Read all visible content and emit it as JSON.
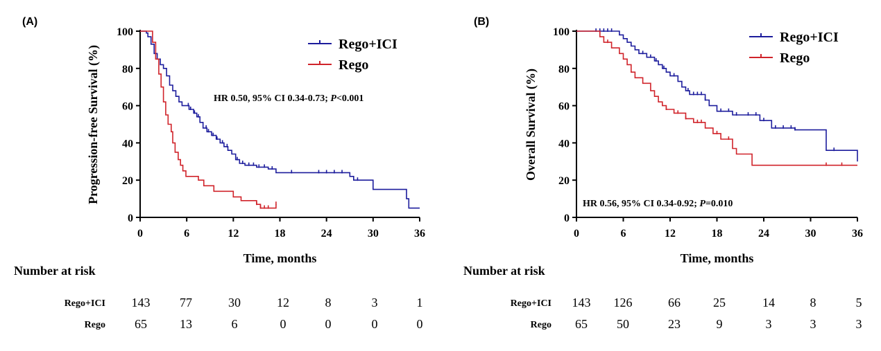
{
  "panels": [
    {
      "label": "(A)",
      "hr_prefix": "HR 0.50, 95%  CI 0.34-0.73; ",
      "hr_p_symbol": "P",
      "hr_p_value": "<0.001",
      "risk": {
        "title": "Number at risk",
        "rows": [
          {
            "name": "Rego+ICI",
            "values": [
              "143",
              "77",
              "30",
              "12",
              "8",
              "3",
              "1"
            ]
          },
          {
            "name": "Rego",
            "values": [
              "65",
              "13",
              "6",
              "0",
              "0",
              "0",
              "0"
            ]
          }
        ]
      }
    },
    {
      "label": "(B)",
      "hr_prefix": "HR 0.56, 95%  CI 0.34-0.92; ",
      "hr_p_symbol": "P",
      "hr_p_value": "=0.010",
      "risk": {
        "title": "Number at risk",
        "rows": [
          {
            "name": "Rego+ICI",
            "values": [
              "143",
              "126",
              "66",
              "25",
              "14",
              "8",
              "5"
            ]
          },
          {
            "name": "Rego",
            "values": [
              "65",
              "50",
              "23",
              "9",
              "3",
              "3",
              "3"
            ]
          }
        ]
      }
    }
  ],
  "chart_data": [
    {
      "type": "line",
      "title": "",
      "xlabel": "Time, months",
      "ylabel": "Progression-free Survival (%)",
      "xlim": [
        0,
        36
      ],
      "ylim": [
        0,
        100
      ],
      "xticks": [
        "0",
        "6",
        "12",
        "18",
        "24",
        "30",
        "36"
      ],
      "yticks": [
        "0",
        "20",
        "40",
        "60",
        "80",
        "100"
      ],
      "legend": "top-right",
      "series": [
        {
          "name": "Rego+ICI",
          "color": "#1c1c9c",
          "step": true,
          "points": [
            [
              0,
              100
            ],
            [
              0.5,
              100
            ],
            [
              0.8,
              99
            ],
            [
              1.0,
              97
            ],
            [
              1.4,
              93
            ],
            [
              1.8,
              88
            ],
            [
              2.2,
              85
            ],
            [
              2.6,
              82
            ],
            [
              3.0,
              80
            ],
            [
              3.4,
              76
            ],
            [
              3.8,
              71
            ],
            [
              4.2,
              68
            ],
            [
              4.6,
              65
            ],
            [
              5.0,
              62
            ],
            [
              5.4,
              60
            ],
            [
              6.3,
              58
            ],
            [
              6.9,
              56
            ],
            [
              7.3,
              54
            ],
            [
              7.7,
              51
            ],
            [
              8.1,
              48
            ],
            [
              8.6,
              46
            ],
            [
              9.2,
              44
            ],
            [
              9.8,
              42
            ],
            [
              10.3,
              40
            ],
            [
              10.8,
              38
            ],
            [
              11.3,
              36
            ],
            [
              11.8,
              34
            ],
            [
              12.3,
              31
            ],
            [
              12.8,
              29
            ],
            [
              13.5,
              28
            ],
            [
              15.0,
              27
            ],
            [
              16.5,
              26
            ],
            [
              17.5,
              24
            ],
            [
              27.0,
              22
            ],
            [
              27.5,
              20
            ],
            [
              30.0,
              15
            ],
            [
              34.3,
              10
            ],
            [
              34.6,
              5
            ],
            [
              36,
              5
            ]
          ],
          "censor_x": [
            6.2,
            6.5,
            7.0,
            7.5,
            8.5,
            8.8,
            9.4,
            9.9,
            10.6,
            11.2,
            12.5,
            13.2,
            14.0,
            14.6,
            15.3,
            16.0,
            17.0,
            19.5,
            23.0,
            24.0,
            25.0,
            26.0,
            28.0
          ]
        },
        {
          "name": "Rego",
          "color": "#d0232a",
          "step": true,
          "points": [
            [
              0,
              100
            ],
            [
              1.3,
              100
            ],
            [
              1.6,
              94
            ],
            [
              2.0,
              85
            ],
            [
              2.4,
              77
            ],
            [
              2.7,
              70
            ],
            [
              3.0,
              62
            ],
            [
              3.3,
              55
            ],
            [
              3.6,
              50
            ],
            [
              4.0,
              46
            ],
            [
              4.2,
              40
            ],
            [
              4.5,
              35
            ],
            [
              4.9,
              31
            ],
            [
              5.2,
              28
            ],
            [
              5.5,
              25
            ],
            [
              5.9,
              22
            ],
            [
              7.5,
              20
            ],
            [
              8.2,
              17
            ],
            [
              9.5,
              14
            ],
            [
              12.0,
              11
            ],
            [
              13.0,
              9
            ],
            [
              14.5,
              9
            ],
            [
              15.0,
              7
            ],
            [
              15.5,
              5
            ],
            [
              17.5,
              5
            ],
            [
              17.5,
              7
            ]
          ],
          "censor_x": [
            15.0,
            15.5,
            16.0,
            16.5,
            17.5
          ]
        }
      ]
    },
    {
      "type": "line",
      "title": "",
      "xlabel": "Time, months",
      "ylabel": "Overall Survival (%)",
      "xlim": [
        0,
        36
      ],
      "ylim": [
        0,
        100
      ],
      "xticks": [
        "0",
        "6",
        "12",
        "18",
        "24",
        "30",
        "36"
      ],
      "yticks": [
        "0",
        "20",
        "40",
        "60",
        "80",
        "100"
      ],
      "legend": "top-right",
      "series": [
        {
          "name": "Rego+ICI",
          "color": "#1c1c9c",
          "step": true,
          "points": [
            [
              0,
              100
            ],
            [
              5.0,
              100
            ],
            [
              5.5,
              98
            ],
            [
              6.0,
              96
            ],
            [
              6.5,
              94
            ],
            [
              7.0,
              92
            ],
            [
              7.5,
              90
            ],
            [
              8.0,
              88
            ],
            [
              9.0,
              86
            ],
            [
              10.0,
              84
            ],
            [
              10.5,
              82
            ],
            [
              11.0,
              80
            ],
            [
              11.5,
              78
            ],
            [
              12.0,
              76
            ],
            [
              13.0,
              73
            ],
            [
              13.5,
              70
            ],
            [
              14.0,
              68
            ],
            [
              14.5,
              66
            ],
            [
              16.5,
              63
            ],
            [
              17.0,
              60
            ],
            [
              18.0,
              57
            ],
            [
              20.0,
              55
            ],
            [
              23.5,
              52
            ],
            [
              25.0,
              48
            ],
            [
              28.0,
              47
            ],
            [
              31.5,
              47
            ],
            [
              32.0,
              36
            ],
            [
              36.0,
              36
            ],
            [
              36.0,
              30
            ]
          ],
          "censor_x": [
            2.5,
            3.0,
            3.5,
            4.0,
            4.5,
            8.5,
            9.5,
            10.2,
            11.2,
            12.5,
            14.3,
            15.0,
            15.5,
            16.0,
            16.5,
            18.5,
            19.5,
            20.5,
            22.0,
            23.0,
            24.0,
            25.5,
            26.5,
            27.5,
            28.0,
            33.0
          ]
        },
        {
          "name": "Rego",
          "color": "#d0232a",
          "step": true,
          "points": [
            [
              0,
              100
            ],
            [
              2.0,
              100
            ],
            [
              3.0,
              97
            ],
            [
              3.5,
              94
            ],
            [
              4.5,
              91
            ],
            [
              5.5,
              88
            ],
            [
              6.0,
              85
            ],
            [
              6.5,
              82
            ],
            [
              7.0,
              78
            ],
            [
              7.5,
              75
            ],
            [
              8.5,
              72
            ],
            [
              9.5,
              68
            ],
            [
              10.0,
              65
            ],
            [
              10.5,
              62
            ],
            [
              11.0,
              60
            ],
            [
              11.5,
              58
            ],
            [
              12.5,
              56
            ],
            [
              14.0,
              53
            ],
            [
              15.0,
              51
            ],
            [
              16.5,
              48
            ],
            [
              17.5,
              45
            ],
            [
              18.5,
              42
            ],
            [
              20.0,
              37
            ],
            [
              20.5,
              34
            ],
            [
              22.0,
              34
            ],
            [
              22.5,
              28
            ],
            [
              36.0,
              28
            ]
          ],
          "censor_x": [
            4.0,
            11.5,
            13.0,
            14.0,
            15.5,
            16.0,
            18.0,
            19.5,
            32.0,
            34.0
          ]
        }
      ]
    }
  ]
}
